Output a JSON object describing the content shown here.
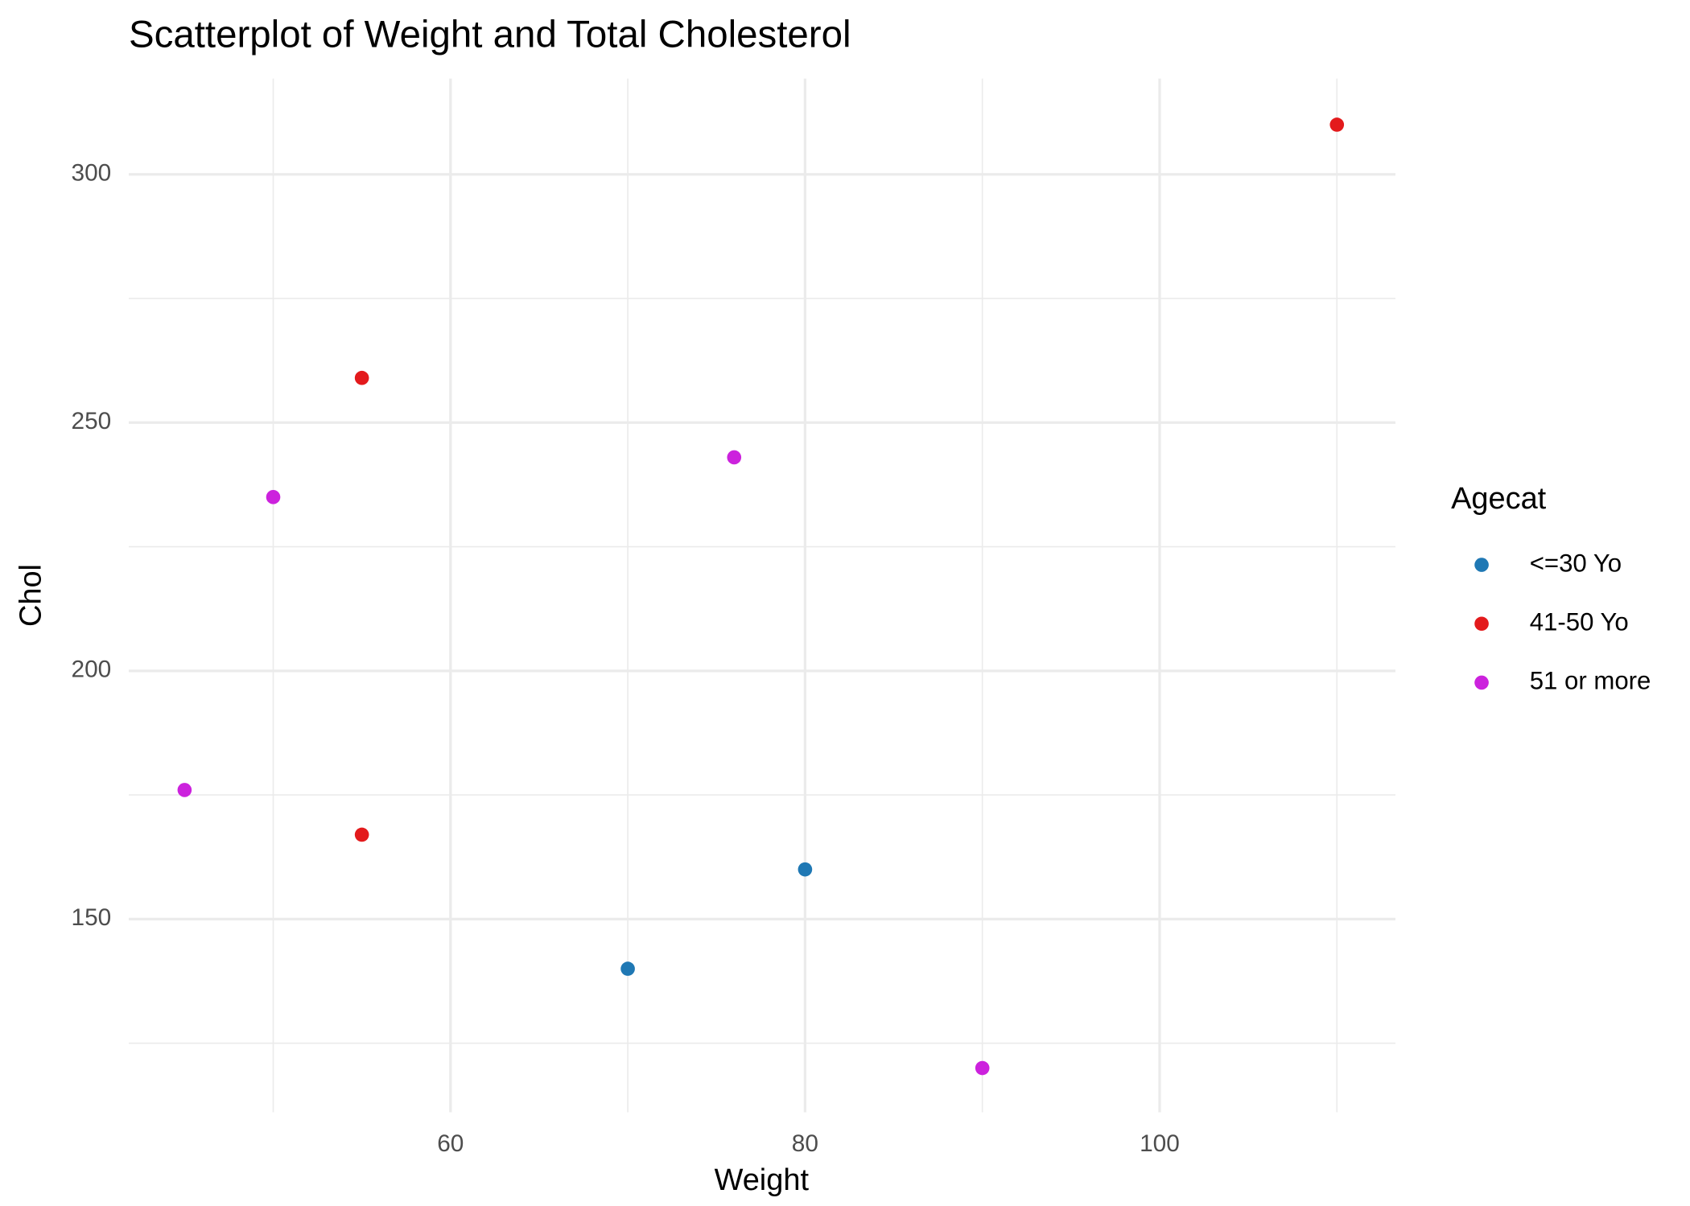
{
  "chart_data": {
    "type": "scatter",
    "title": "Scatterplot of Weight and Total Cholesterol",
    "x_label": "Weight",
    "y_label": "Chol",
    "legend_title": "Agecat",
    "legend_position": "right",
    "grid": true,
    "xlim": [
      41.85,
      113.3
    ],
    "ylim": [
      111.1,
      319.3
    ],
    "xticks": [
      60,
      80,
      100
    ],
    "yticks": [
      150,
      200,
      250,
      300
    ],
    "series": [
      {
        "name": "<=30 Yo",
        "color": "#1f78b4",
        "x": [
          70,
          80
        ],
        "y": [
          140,
          160
        ]
      },
      {
        "name": "41-50 Yo",
        "color": "#e31a1c",
        "x": [
          55,
          55,
          110
        ],
        "y": [
          259,
          167,
          310
        ]
      },
      {
        "name": "51 or more",
        "color": "#cc22dd",
        "x": [
          45,
          50,
          76,
          90
        ],
        "y": [
          176,
          235,
          243,
          120
        ]
      }
    ]
  }
}
